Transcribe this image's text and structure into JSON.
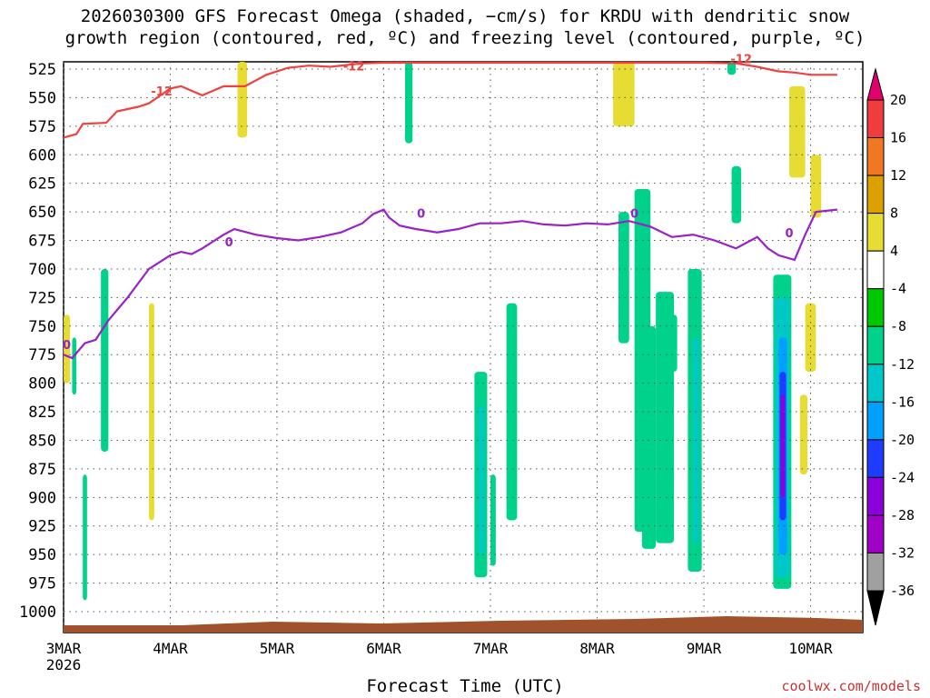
{
  "title": "2026030300 GFS Forecast Omega (shaded, −cm/s) for KRDU with dendritic snow\ngrowth region (contoured, red, ºC) and freezing level (contoured, purple, ºC)",
  "xlabel": "Forecast Time (UTC)",
  "credit": "coolwx.com/models",
  "colors": {
    "snow_contour": "#f04040",
    "freezing_contour": "#9a20c8",
    "ground": "#a0522d"
  },
  "chart_data": {
    "type": "heatmap",
    "x_start_label": "3MAR",
    "x_year_label": "2026",
    "x_ticks": [
      "3MAR",
      "4MAR",
      "5MAR",
      "6MAR",
      "7MAR",
      "8MAR",
      "9MAR",
      "10MAR"
    ],
    "x_range_days": [
      0,
      7.25
    ],
    "y_ticks": [
      525,
      550,
      575,
      600,
      625,
      650,
      675,
      700,
      725,
      750,
      775,
      800,
      825,
      850,
      875,
      900,
      925,
      950,
      975,
      1000
    ],
    "ylim_hpa": [
      1000,
      515
    ],
    "grid": true,
    "colorbar": {
      "labels": [
        "20",
        "16",
        "12",
        "8",
        "4",
        "-4",
        "-8",
        "-12",
        "-16",
        "-20",
        "-24",
        "-28",
        "-32",
        "-36"
      ],
      "colors": [
        "#e0006e",
        "#f03c3c",
        "#f07820",
        "#dca000",
        "#e6dc32",
        "#ffffff",
        "#00c800",
        "#00d28c",
        "#00c8c8",
        "#00a0ff",
        "#1e3cff",
        "#8c00dc",
        "#a000c8",
        "#a0a0a0",
        "#000000"
      ]
    },
    "freezing_level": {
      "label": "0",
      "points": [
        [
          0,
          775
        ],
        [
          0.08,
          778
        ],
        [
          0.2,
          765
        ],
        [
          0.3,
          762
        ],
        [
          0.42,
          745
        ],
        [
          0.6,
          725
        ],
        [
          0.72,
          710
        ],
        [
          0.8,
          700
        ],
        [
          1.0,
          688
        ],
        [
          1.1,
          685
        ],
        [
          1.2,
          687
        ],
        [
          1.3,
          682
        ],
        [
          1.5,
          670
        ],
        [
          1.6,
          665
        ],
        [
          1.8,
          670
        ],
        [
          2.0,
          673
        ],
        [
          2.2,
          675
        ],
        [
          2.4,
          672
        ],
        [
          2.6,
          668
        ],
        [
          2.8,
          660
        ],
        [
          2.9,
          652
        ],
        [
          3.0,
          648
        ],
        [
          3.05,
          655
        ],
        [
          3.15,
          662
        ],
        [
          3.3,
          665
        ],
        [
          3.5,
          668
        ],
        [
          3.7,
          665
        ],
        [
          3.9,
          660
        ],
        [
          4.1,
          660
        ],
        [
          4.3,
          658
        ],
        [
          4.5,
          661
        ],
        [
          4.7,
          662
        ],
        [
          4.9,
          660
        ],
        [
          5.1,
          661
        ],
        [
          5.3,
          658
        ],
        [
          5.5,
          663
        ],
        [
          5.7,
          672
        ],
        [
          5.9,
          670
        ],
        [
          6.1,
          675
        ],
        [
          6.3,
          682
        ],
        [
          6.5,
          672
        ],
        [
          6.6,
          682
        ],
        [
          6.7,
          688
        ],
        [
          6.85,
          692
        ],
        [
          6.95,
          670
        ],
        [
          7.05,
          650
        ],
        [
          7.25,
          648
        ]
      ]
    },
    "snow_growth_contour": {
      "label": "-12",
      "points": [
        [
          0,
          585
        ],
        [
          0.12,
          582
        ],
        [
          0.18,
          573
        ],
        [
          0.4,
          572
        ],
        [
          0.5,
          562
        ],
        [
          0.7,
          558
        ],
        [
          0.8,
          555
        ],
        [
          1.0,
          542
        ],
        [
          1.1,
          540
        ],
        [
          1.3,
          548
        ],
        [
          1.5,
          540
        ],
        [
          1.7,
          540
        ],
        [
          1.9,
          530
        ],
        [
          2.1,
          524
        ],
        [
          2.3,
          522
        ],
        [
          2.5,
          523
        ],
        [
          2.8,
          520
        ],
        [
          3.0,
          518
        ],
        [
          3.3,
          516
        ],
        [
          3.6,
          517
        ],
        [
          3.9,
          515
        ],
        [
          4.2,
          515
        ],
        [
          4.5,
          515
        ],
        [
          4.8,
          515
        ],
        [
          5.1,
          515
        ],
        [
          5.4,
          515
        ],
        [
          5.7,
          515
        ],
        [
          6.0,
          515
        ],
        [
          6.3,
          520
        ],
        [
          6.5,
          523
        ],
        [
          6.7,
          527
        ],
        [
          6.85,
          528
        ],
        [
          7.0,
          530
        ],
        [
          7.25,
          530
        ]
      ]
    },
    "omega_patches": [
      {
        "x": [
          6.65,
          6.82
        ],
        "p": [
          705,
          980
        ],
        "value": -8
      },
      {
        "x": [
          6.67,
          6.8
        ],
        "p": [
          725,
          970
        ],
        "value": -12
      },
      {
        "x": [
          6.7,
          6.78
        ],
        "p": [
          760,
          950
        ],
        "value": -16
      },
      {
        "x": [
          6.71,
          6.77
        ],
        "p": [
          790,
          920
        ],
        "value": -20
      },
      {
        "x": [
          6.72,
          6.76
        ],
        "p": [
          810,
          900
        ],
        "value": -24
      },
      {
        "x": [
          5.85,
          5.98
        ],
        "p": [
          700,
          965
        ],
        "value": -8
      },
      {
        "x": [
          5.9,
          5.95
        ],
        "p": [
          760,
          940
        ],
        "value": -12
      },
      {
        "x": [
          5.55,
          5.72
        ],
        "p": [
          720,
          940
        ],
        "value": -8
      },
      {
        "x": [
          5.6,
          5.75
        ],
        "p": [
          740,
          790
        ],
        "value": -8
      },
      {
        "x": [
          5.35,
          5.5
        ],
        "p": [
          630,
          930
        ],
        "value": -8
      },
      {
        "x": [
          5.42,
          5.55
        ],
        "p": [
          750,
          945
        ],
        "value": -8
      },
      {
        "x": [
          5.2,
          5.3
        ],
        "p": [
          650,
          765
        ],
        "value": -8
      },
      {
        "x": [
          4.15,
          4.25
        ],
        "p": [
          730,
          920
        ],
        "value": -8
      },
      {
        "x": [
          6.26,
          6.35
        ],
        "p": [
          610,
          660
        ],
        "value": -8
      },
      {
        "x": [
          6.22,
          6.3
        ],
        "p": [
          515,
          530
        ],
        "value": -8
      },
      {
        "x": [
          3.85,
          3.97
        ],
        "p": [
          790,
          970
        ],
        "value": -8
      },
      {
        "x": [
          3.89,
          3.94
        ],
        "p": [
          820,
          950
        ],
        "value": -12
      },
      {
        "x": [
          3.2,
          3.27
        ],
        "p": [
          515,
          590
        ],
        "value": -8
      },
      {
        "x": [
          4.0,
          4.05
        ],
        "p": [
          880,
          960
        ],
        "value": -8
      },
      {
        "x": [
          0.35,
          0.42
        ],
        "p": [
          700,
          860
        ],
        "value": -8
      },
      {
        "x": [
          0.18,
          0.22
        ],
        "p": [
          880,
          990
        ],
        "value": -8
      },
      {
        "x": [
          0.08,
          0.12
        ],
        "p": [
          760,
          810
        ],
        "value": -8
      },
      {
        "x": [
          5.15,
          5.35
        ],
        "p": [
          515,
          575
        ],
        "value": 4
      },
      {
        "x": [
          6.8,
          6.95
        ],
        "p": [
          540,
          620
        ],
        "value": 4
      },
      {
        "x": [
          7.0,
          7.1
        ],
        "p": [
          600,
          655
        ],
        "value": 4
      },
      {
        "x": [
          6.95,
          7.05
        ],
        "p": [
          730,
          790
        ],
        "value": 4
      },
      {
        "x": [
          6.9,
          6.97
        ],
        "p": [
          810,
          880
        ],
        "value": 4
      },
      {
        "x": [
          1.63,
          1.72
        ],
        "p": [
          515,
          585
        ],
        "value": 4
      },
      {
        "x": [
          0.0,
          0.06
        ],
        "p": [
          740,
          800
        ],
        "value": 4
      },
      {
        "x": [
          0.8,
          0.85
        ],
        "p": [
          730,
          920
        ],
        "value": 4
      }
    ]
  }
}
